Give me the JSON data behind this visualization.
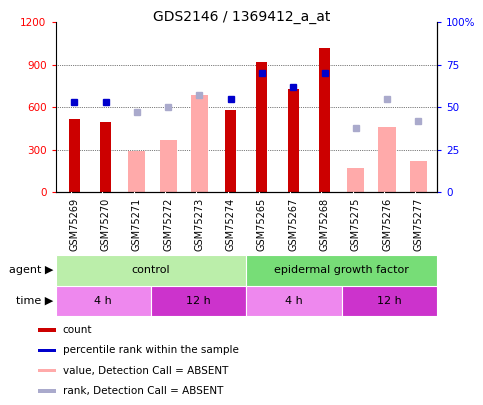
{
  "title": "GDS2146 / 1369412_a_at",
  "samples": [
    "GSM75269",
    "GSM75270",
    "GSM75271",
    "GSM75272",
    "GSM75273",
    "GSM75274",
    "GSM75265",
    "GSM75267",
    "GSM75268",
    "GSM75275",
    "GSM75276",
    "GSM75277"
  ],
  "count_values": [
    520,
    500,
    null,
    null,
    null,
    580,
    920,
    730,
    1020,
    null,
    null,
    null
  ],
  "absent_value_bars": [
    null,
    null,
    290,
    370,
    690,
    null,
    null,
    null,
    null,
    170,
    460,
    220
  ],
  "percentile_rank": [
    53,
    53,
    null,
    null,
    null,
    55,
    70,
    62,
    70,
    null,
    null,
    null
  ],
  "absent_rank": [
    null,
    null,
    47,
    50,
    57,
    null,
    null,
    null,
    null,
    38,
    55,
    42
  ],
  "ylim_left": [
    0,
    1200
  ],
  "ylim_right": [
    0,
    100
  ],
  "yticks_left": [
    0,
    300,
    600,
    900,
    1200
  ],
  "yticks_right": [
    0,
    25,
    50,
    75,
    100
  ],
  "count_color": "#cc0000",
  "absent_value_color": "#ffaaaa",
  "percentile_color": "#0000cc",
  "absent_rank_color": "#aaaacc",
  "title_fontsize": 10,
  "legend_items": [
    {
      "label": "count",
      "color": "#cc0000"
    },
    {
      "label": "percentile rank within the sample",
      "color": "#0000cc"
    },
    {
      "label": "value, Detection Call = ABSENT",
      "color": "#ffaaaa"
    },
    {
      "label": "rank, Detection Call = ABSENT",
      "color": "#aaaacc"
    }
  ],
  "agent_groups": [
    {
      "label": "control",
      "start": 0,
      "end": 6,
      "color": "#bbeeaa"
    },
    {
      "label": "epidermal growth factor",
      "start": 6,
      "end": 12,
      "color": "#77dd77"
    }
  ],
  "time_groups": [
    {
      "label": "4 h",
      "start": 0,
      "end": 3,
      "color": "#ee88ee"
    },
    {
      "label": "12 h",
      "start": 3,
      "end": 6,
      "color": "#cc33cc"
    },
    {
      "label": "4 h",
      "start": 6,
      "end": 9,
      "color": "#ee88ee"
    },
    {
      "label": "12 h",
      "start": 9,
      "end": 12,
      "color": "#cc33cc"
    }
  ],
  "xticklabel_bg": "#c8c8c8",
  "agent_label": "agent",
  "time_label": "time"
}
